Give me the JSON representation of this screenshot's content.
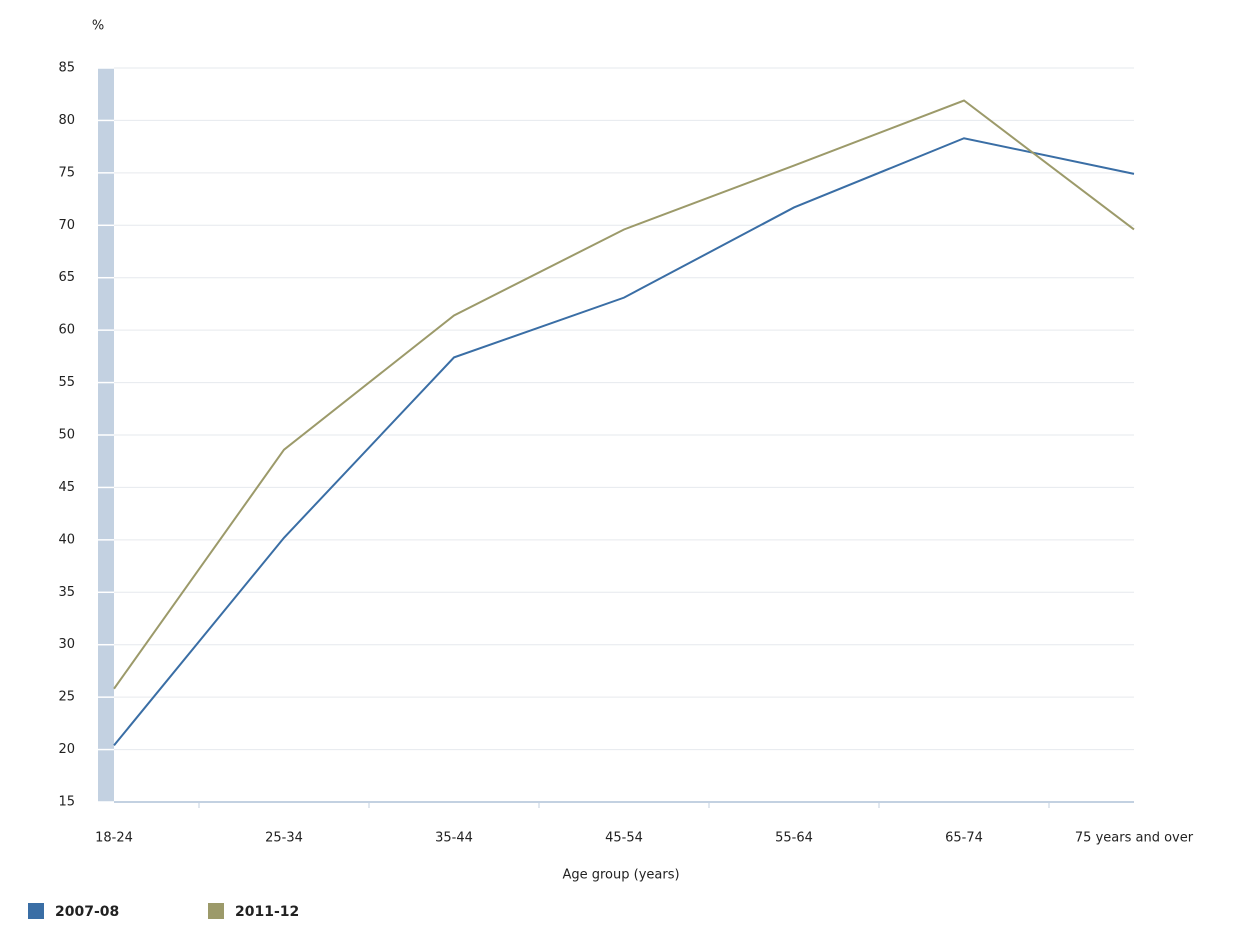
{
  "chart_data": {
    "type": "line",
    "y_label": "%",
    "x_label": "Age group (years)",
    "categories": [
      "18-24",
      "25-34",
      "35-44",
      "45-54",
      "55-64",
      "65-74",
      "75 years and over"
    ],
    "series": [
      {
        "name": "2007-08",
        "color": "#3a6ea5",
        "values": [
          20.4,
          40.2,
          57.4,
          63.1,
          71.7,
          78.3,
          74.9
        ]
      },
      {
        "name": "2011-12",
        "color": "#9c9a6a",
        "values": [
          25.8,
          48.6,
          61.4,
          69.6,
          75.7,
          81.9,
          69.6
        ]
      }
    ],
    "ylim": [
      15,
      85
    ],
    "yticks": [
      15,
      20,
      25,
      30,
      35,
      40,
      45,
      50,
      55,
      60,
      65,
      70,
      75,
      80,
      85
    ],
    "grid": true
  }
}
